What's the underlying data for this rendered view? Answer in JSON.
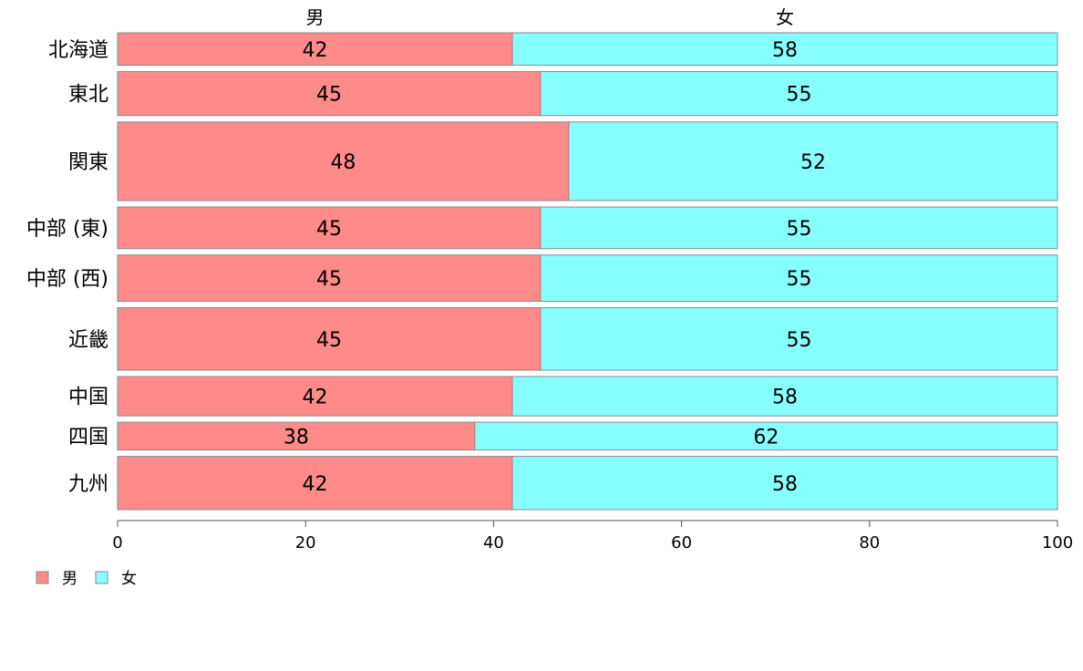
{
  "chart_data": {
    "type": "bar",
    "orientation": "horizontal",
    "stacked": true,
    "percent": true,
    "categories": [
      "北海道",
      "東北",
      "関東",
      "中部 (東)",
      "中部 (西)",
      "近畿",
      "中国",
      "四国",
      "九州"
    ],
    "series": [
      {
        "name": "男",
        "values": [
          42,
          45,
          48,
          45,
          45,
          45,
          42,
          38,
          42
        ],
        "color": "#ff8a8a"
      },
      {
        "name": "女",
        "values": [
          58,
          55,
          52,
          55,
          55,
          55,
          58,
          62,
          58
        ],
        "color": "#88ffff"
      }
    ],
    "relative_bar_widths": [
      0.7,
      0.95,
      1.7,
      0.9,
      1.0,
      1.35,
      0.85,
      0.6,
      1.15
    ],
    "xlim": [
      0,
      100
    ],
    "xticks": [
      0,
      20,
      40,
      60,
      80,
      100
    ],
    "xlabel": "",
    "ylabel": "",
    "title": "",
    "legend_position": "bottom-left",
    "grid": false
  }
}
